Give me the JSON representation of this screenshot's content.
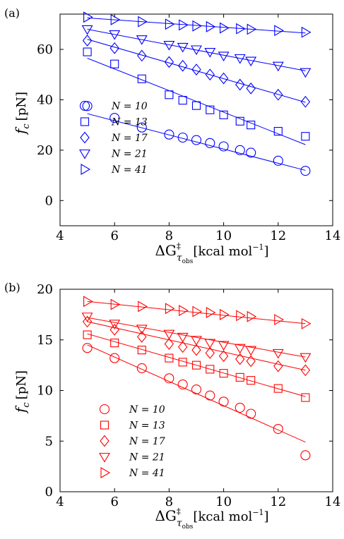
{
  "chart_data": [
    {
      "type": "scatter",
      "panel_label": "(a)",
      "color": "#0000ff",
      "xlim": [
        4,
        14
      ],
      "ylim": [
        -10,
        74
      ],
      "xticks": [
        4,
        6,
        8,
        10,
        12,
        14
      ],
      "yticks": [
        0,
        20,
        40,
        60
      ],
      "ytick_labels": [
        "0",
        "20",
        "40",
        "60"
      ],
      "xlabel_main": "ΔG",
      "xlabel_sup": "‡",
      "xlabel_sub": "τ",
      "xlabel_subsub": "obs",
      "xlabel_units": "[kcal mol",
      "xlabel_exp": "−1",
      "xlabel_close": "]",
      "ylabel_main": "f",
      "ylabel_sub": "c",
      "ylabel_units": "[pN]",
      "legend_position": "lower-left",
      "series": [
        {
          "name": "N = 10",
          "marker": "circle",
          "x": [
            5,
            6,
            7,
            8,
            8.5,
            9,
            9.5,
            10,
            10.6,
            11,
            12,
            13
          ],
          "y": [
            37.5,
            32.8,
            29,
            26.2,
            25,
            24,
            22.8,
            21.5,
            20,
            19,
            15.8,
            11.8
          ],
          "fit": [
            [
              5,
              34.5
            ],
            [
              13,
              12
            ]
          ]
        },
        {
          "name": "N = 13",
          "marker": "square",
          "x": [
            5,
            6,
            7,
            8,
            8.5,
            9,
            9.5,
            10,
            10.6,
            11,
            12,
            13
          ],
          "y": [
            59,
            54.2,
            48.3,
            42,
            39.8,
            37.7,
            36,
            34,
            31.5,
            30,
            27.5,
            25.5
          ],
          "fit": [
            [
              5,
              56.5
            ],
            [
              13,
              22.2
            ]
          ]
        },
        {
          "name": "N = 17",
          "marker": "diamond",
          "x": [
            5,
            6,
            7,
            8,
            8.5,
            9,
            9.5,
            10,
            10.6,
            11,
            12,
            13
          ],
          "y": [
            63.5,
            60.5,
            57.5,
            55,
            53.5,
            52,
            50,
            48.5,
            46,
            44.5,
            42,
            39.2
          ],
          "fit": [
            [
              5,
              64
            ],
            [
              13,
              39
            ]
          ]
        },
        {
          "name": "N = 21",
          "marker": "triangle-down",
          "x": [
            5,
            6,
            7,
            8,
            8.5,
            9,
            9.5,
            10,
            10.6,
            11,
            12,
            13
          ],
          "y": [
            68,
            66,
            64,
            61.8,
            61,
            60,
            59,
            57.5,
            56.5,
            55.5,
            53.5,
            51
          ],
          "fit": [
            [
              5,
              68
            ],
            [
              13,
              51.5
            ]
          ]
        },
        {
          "name": "N = 41",
          "marker": "triangle-right",
          "x": [
            5,
            6,
            7,
            8,
            8.5,
            9,
            9.5,
            10,
            10.6,
            11,
            12,
            13
          ],
          "y": [
            72.8,
            71.8,
            71,
            70,
            69.7,
            69.3,
            69,
            68.5,
            68.2,
            68,
            67.5,
            66.8
          ],
          "fit": [
            [
              5,
              72.5
            ],
            [
              13,
              66.5
            ]
          ]
        }
      ]
    },
    {
      "type": "scatter",
      "panel_label": "(b)",
      "color": "#ff0000",
      "xlim": [
        4,
        14
      ],
      "ylim": [
        0,
        20
      ],
      "xticks": [
        4,
        6,
        8,
        10,
        12,
        14
      ],
      "yticks": [
        0,
        5,
        10,
        15,
        20
      ],
      "ytick_labels": [
        "0",
        "5",
        "10",
        "15",
        "20"
      ],
      "xlabel_main": "ΔG",
      "xlabel_sup": "‡",
      "xlabel_sub": "τ",
      "xlabel_subsub": "obs",
      "xlabel_units": "[kcal mol",
      "xlabel_exp": "−1",
      "xlabel_close": "]",
      "ylabel_main": "f",
      "ylabel_sub": "c",
      "ylabel_units": "[pN]",
      "legend_position": "lower-left",
      "series": [
        {
          "name": "N = 10",
          "marker": "circle",
          "x": [
            5,
            6,
            7,
            8,
            8.5,
            9,
            9.5,
            10,
            10.6,
            11,
            12,
            13
          ],
          "y": [
            14.2,
            13.2,
            12.2,
            11.2,
            10.6,
            10.1,
            9.5,
            8.9,
            8.3,
            7.7,
            6.2,
            3.6
          ],
          "fit": [
            [
              5,
              14.5
            ],
            [
              13,
              4.9
            ]
          ]
        },
        {
          "name": "N = 13",
          "marker": "square",
          "x": [
            5,
            6,
            7,
            8,
            8.5,
            9,
            9.5,
            10,
            10.6,
            11,
            12,
            13
          ],
          "y": [
            15.5,
            14.7,
            14,
            13.2,
            12.8,
            12.5,
            12.1,
            11.7,
            11.3,
            11,
            10.2,
            9.3
          ],
          "fit": [
            [
              5,
              15.6
            ],
            [
              13,
              9.4
            ]
          ]
        },
        {
          "name": "N = 17",
          "marker": "diamond",
          "x": [
            5,
            6,
            7,
            8,
            8.5,
            9,
            9.5,
            10,
            10.6,
            11,
            12,
            13
          ],
          "y": [
            16.8,
            16,
            15.3,
            14.6,
            14.3,
            14,
            13.7,
            13.4,
            13.1,
            12.9,
            12.4,
            12
          ],
          "fit": [
            [
              5,
              16.8
            ],
            [
              13,
              12
            ]
          ]
        },
        {
          "name": "N = 21",
          "marker": "triangle-down",
          "x": [
            5,
            6,
            7,
            8,
            8.5,
            9,
            9.5,
            10,
            10.6,
            11,
            12,
            13
          ],
          "y": [
            17.3,
            16.6,
            16.1,
            15.6,
            15.3,
            15,
            14.7,
            14.5,
            14.2,
            14,
            13.7,
            13.3
          ],
          "fit": [
            [
              5,
              17.2
            ],
            [
              13,
              13.3
            ]
          ]
        },
        {
          "name": "N = 41",
          "marker": "triangle-right",
          "x": [
            5,
            6,
            7,
            8,
            8.5,
            9,
            9.5,
            10,
            10.6,
            11,
            12,
            13
          ],
          "y": [
            18.8,
            18.5,
            18.3,
            18.1,
            17.9,
            17.8,
            17.7,
            17.5,
            17.4,
            17.3,
            17,
            16.6
          ],
          "fit": [
            [
              5,
              18.8
            ],
            [
              13,
              16.6
            ]
          ]
        }
      ]
    }
  ]
}
